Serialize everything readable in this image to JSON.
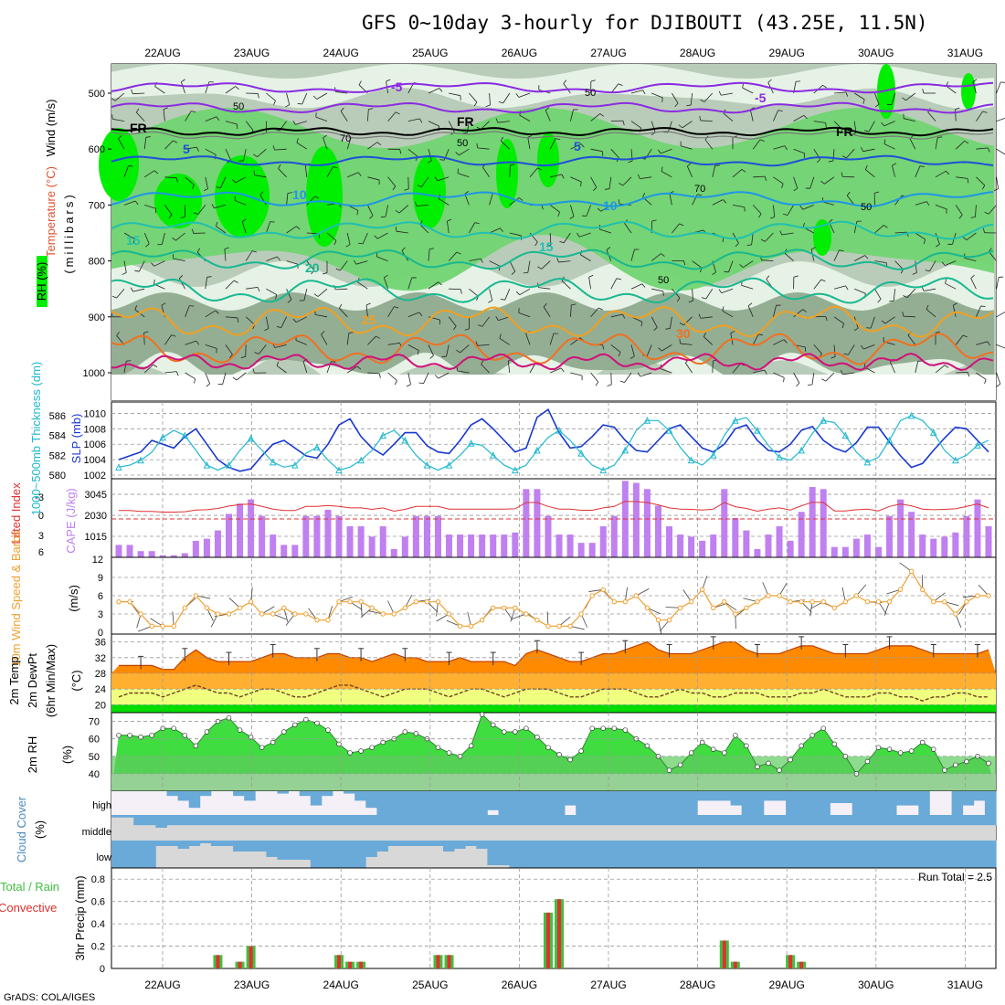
{
  "title": "GFS 0~10day 3-hourly for DJIBOUTI (43.25E, 11.5N)",
  "credit": "GrADS: COLA/IGES",
  "dates": [
    "22AUG",
    "23AUG",
    "24AUG",
    "25AUG",
    "26AUG",
    "27AUG",
    "28AUG",
    "29AUG",
    "30AUG",
    "31AUG"
  ],
  "colors": {
    "rh_light": "#e8f3e8",
    "rh_mid": "#b9ccb9",
    "rh_dark": "#8faa8f",
    "rh_green": "#71d471",
    "rh_bright": "#00ee00",
    "temp_neg": "#8a2be2",
    "temp_5": "#1e50d8",
    "temp_10": "#1e96e6",
    "temp_15": "#20c0b0",
    "temp_20": "#18b890",
    "temp_25": "#f0a020",
    "temp_30": "#f07020",
    "temp_35": "#d0107a",
    "slp": "#1838d0",
    "thickness": "#20b8d0",
    "lifted": "#e03030",
    "cape": "#c080f0",
    "wind10": "#f0a030",
    "barb": "#444444",
    "t_band_orange": "#ff8a00",
    "t_band_amber": "#ffb030",
    "t_band_yellow": "#f0ff80",
    "rh2m": "#40dd40",
    "cloud": "#6aaad8",
    "cloud_none": "#d8d8d8",
    "precip_total": "#40c040",
    "precip_conv": "#e03030"
  },
  "panel_upper": {
    "label_wind": "Wind (m/s)",
    "label_temp": "Temperature (°C)",
    "label_rh": "RH (%)",
    "axis_label": "(millibars)",
    "levels": [
      500,
      600,
      700,
      800,
      900,
      1000
    ],
    "contour_labels": [
      {
        "text": "-5",
        "color_key": "temp_neg"
      },
      {
        "text": "-5",
        "color_key": "temp_neg"
      },
      {
        "text": "FR",
        "color_key": ""
      },
      {
        "text": "FR",
        "color_key": ""
      },
      {
        "text": "FR",
        "color_key": ""
      },
      {
        "text": "5",
        "color_key": "temp_5"
      },
      {
        "text": "5",
        "color_key": "temp_5"
      },
      {
        "text": "10",
        "color_key": "temp_10"
      },
      {
        "text": "10",
        "color_key": "temp_10"
      },
      {
        "text": "15",
        "color_key": "temp_15"
      },
      {
        "text": "15",
        "color_key": "temp_15"
      },
      {
        "text": "20",
        "color_key": "temp_20"
      },
      {
        "text": "25",
        "color_key": "temp_25"
      },
      {
        "text": "30",
        "color_key": "temp_30"
      }
    ],
    "rh_labels": [
      "50",
      "50",
      "70",
      "50",
      "50",
      "70",
      "50"
    ]
  },
  "panel_slp": {
    "label_thickness": "1000~500mb Thickness (dm)",
    "label_slp": "SLP (mb)",
    "thickness_ticks": [
      586,
      584,
      582,
      580
    ],
    "slp_ticks": [
      1010,
      1008,
      1006,
      1004,
      1002
    ]
  },
  "panel_cape": {
    "label_li": "Lifted Index",
    "label_cape": "CAPE (J/kg)",
    "li_ticks": [
      "-3",
      "0",
      "3",
      "6"
    ],
    "cape_ticks": [
      3045,
      2030,
      1015
    ]
  },
  "panel_wind": {
    "label": "10m Wind Speed & Barbs",
    "unit": "(m/s)",
    "ticks": [
      12,
      9,
      6,
      3,
      0
    ]
  },
  "panel_temp": {
    "label": "2m Temp",
    "label2": "2m DewPt",
    "label3": "(6hr Min/Max)",
    "unit": "(°C)",
    "ticks": [
      36,
      32,
      28,
      24,
      20
    ]
  },
  "panel_rh": {
    "label": "2m RH",
    "unit": "(%)",
    "ticks": [
      70,
      60,
      50,
      40
    ]
  },
  "panel_cloud": {
    "label": "Cloud Cover",
    "unit": "(%)",
    "layers": [
      "high",
      "middle",
      "low"
    ]
  },
  "panel_precip": {
    "label_total": "Total / Rain",
    "label_conv": "Convective",
    "label_axis": "3hr Precip (mm)",
    "ticks": [
      "0.8",
      "0.6",
      "0.4",
      "0.2",
      "0"
    ],
    "run_total": "Run Total = 2.5"
  },
  "chart_data": {
    "type": "line",
    "title": "GFS 0~10day 3-hourly for DJIBOUTI (43.25E, 11.5N)",
    "time_step_hours": 3,
    "n_steps": 80,
    "x_labels": [
      "22AUG",
      "23AUG",
      "24AUG",
      "25AUG",
      "26AUG",
      "27AUG",
      "28AUG",
      "29AUG",
      "30AUG",
      "31AUG"
    ],
    "series": [
      {
        "name": "SLP (mb)",
        "ylim": [
          1002,
          1011
        ],
        "values": [
          1004,
          1004.5,
          1005,
          1006.5,
          1006,
          1005.5,
          1007,
          1008,
          1006,
          1004,
          1003,
          1002.5,
          1002.8,
          1004.5,
          1006,
          1006.5,
          1005.5,
          1004.5,
          1004.2,
          1006,
          1008.5,
          1009.3,
          1007,
          1005.5,
          1004.6,
          1006,
          1007.5,
          1007.5,
          1005.8,
          1005,
          1004.8,
          1006.5,
          1008.5,
          1009.3,
          1008,
          1006.5,
          1005,
          1005.5,
          1009.5,
          1010.5,
          1007.5,
          1005.5,
          1005.7,
          1007,
          1008.5,
          1008.2,
          1006.5,
          1005.2,
          1005,
          1006.5,
          1008,
          1008.5,
          1007,
          1005.5,
          1005,
          1006,
          1008,
          1008.5,
          1006.5,
          1005.2,
          1005,
          1006,
          1007.8,
          1008.3,
          1006.5,
          1005.5,
          1005,
          1006.2,
          1008.2,
          1008.2,
          1006.3,
          1004.5,
          1003,
          1003.5,
          1005.2,
          1006.8,
          1008.2,
          1008,
          1006.5,
          1005
        ]
      },
      {
        "name": "1000~500mb Thickness (dm)",
        "ylim": [
          580,
          587
        ],
        "values": [
          580.8,
          581,
          581.5,
          582.3,
          583.8,
          584.5,
          584,
          582.5,
          581,
          580.5,
          581,
          582.5,
          583.7,
          582.5,
          581.3,
          580.8,
          581,
          582.2,
          582.8,
          581.5,
          580.5,
          580.8,
          581.5,
          582.5,
          584,
          584.5,
          583.5,
          582,
          581,
          580.5,
          581,
          582,
          583.2,
          583,
          582,
          581,
          580.5,
          581,
          582.5,
          583.8,
          584.5,
          583.5,
          582.2,
          581,
          580.5,
          581,
          582.5,
          584.5,
          585.5,
          585.5,
          584.5,
          582.8,
          581.5,
          581,
          582,
          584,
          585.5,
          585.8,
          584.5,
          583,
          581.8,
          581.5,
          582.5,
          584.2,
          585.5,
          585.3,
          584,
          582.3,
          581.3,
          581.8,
          583.5,
          585.5,
          586,
          585.5,
          584.3,
          582.5,
          581.5,
          582,
          583,
          583.5
        ]
      },
      {
        "name": "CAPE (J/kg)",
        "ylim": [
          0,
          3800
        ],
        "values": [
          600,
          600,
          300,
          300,
          100,
          100,
          200,
          800,
          900,
          1300,
          2100,
          2600,
          2800,
          2000,
          1100,
          600,
          600,
          2000,
          2000,
          2300,
          2000,
          1500,
          1500,
          1000,
          1500,
          400,
          1000,
          2000,
          2000,
          2000,
          1100,
          1100,
          1100,
          1100,
          1100,
          1100,
          1200,
          3300,
          3300,
          2000,
          1100,
          1100,
          700,
          700,
          1500,
          2000,
          3700,
          3600,
          3300,
          2500,
          1500,
          1100,
          1000,
          800,
          1100,
          3300,
          1900,
          1300,
          400,
          1100,
          1500,
          800,
          2200,
          3400,
          3300,
          500,
          500,
          900,
          1100,
          500,
          2000,
          2800,
          2200,
          1100,
          900,
          1000,
          1200,
          2000,
          2800,
          1500
        ]
      },
      {
        "name": "10m Wind Speed (m/s)",
        "ylim": [
          0,
          12
        ],
        "values": [
          5,
          5,
          3,
          1,
          1,
          1,
          4,
          6,
          4,
          3,
          3,
          4,
          5,
          3,
          3,
          4,
          3,
          3,
          2,
          2,
          5,
          5,
          5,
          4,
          3,
          3,
          4,
          5,
          5,
          5,
          3,
          1,
          1,
          2,
          4,
          4,
          4,
          3,
          2,
          1,
          1,
          1,
          3,
          6,
          7,
          5,
          5,
          6,
          4,
          2,
          2,
          4,
          5,
          7,
          4,
          5,
          3,
          4,
          5,
          6,
          6,
          5,
          5,
          5,
          5,
          4,
          5,
          6,
          5,
          5,
          5,
          7,
          10,
          7,
          5,
          5,
          3,
          5,
          6,
          6
        ]
      },
      {
        "name": "2m Temp (°C)",
        "ylim": [
          18,
          38
        ],
        "values": [
          30,
          30,
          30,
          30,
          29,
          29,
          32,
          34,
          32,
          31,
          31,
          31,
          31,
          32,
          33,
          33,
          32,
          32,
          32,
          33,
          33,
          32,
          32,
          31,
          32,
          33,
          32,
          32,
          31,
          31,
          31,
          32,
          31,
          31,
          31,
          31,
          30,
          33,
          34,
          33,
          32,
          31,
          31,
          32,
          33,
          33,
          34,
          35,
          36,
          34,
          33,
          33,
          33,
          34,
          35,
          36,
          36,
          34,
          33,
          33,
          33,
          34,
          35,
          35,
          34,
          33,
          33,
          33,
          33,
          34,
          35,
          35,
          35,
          34,
          33,
          33,
          33,
          33,
          33,
          34
        ]
      },
      {
        "name": "2m DewPt (°C)",
        "ylim": [
          18,
          38
        ],
        "values": [
          22,
          23,
          23,
          23,
          22,
          23,
          24,
          25,
          24,
          23,
          23,
          22,
          23,
          24,
          24,
          23,
          22,
          22,
          23,
          24,
          25,
          25,
          24,
          23,
          22,
          23,
          24,
          24,
          24,
          23,
          22,
          23,
          24,
          24,
          23,
          22,
          23,
          24,
          24,
          24,
          23,
          22,
          22,
          23,
          24,
          24,
          24,
          23,
          22,
          22,
          23,
          24,
          23,
          23,
          22,
          22,
          23,
          23,
          23,
          22,
          22,
          22,
          23,
          23,
          24,
          23,
          22,
          22,
          22,
          23,
          23,
          22,
          22,
          21,
          22,
          22,
          23,
          23,
          22,
          22
        ]
      },
      {
        "name": "2m RH (%)",
        "ylim": [
          30,
          75
        ],
        "values": [
          62,
          62,
          61,
          62,
          66,
          66,
          62,
          56,
          64,
          70,
          72,
          65,
          61,
          55,
          58,
          64,
          68,
          71,
          69,
          65,
          57,
          52,
          53,
          55,
          58,
          60,
          64,
          63,
          60,
          55,
          52,
          50,
          56,
          74,
          68,
          64,
          64,
          66,
          61,
          55,
          51,
          48,
          53,
          66,
          66,
          66,
          65,
          60,
          56,
          50,
          42,
          45,
          52,
          58,
          54,
          52,
          62,
          56,
          44,
          46,
          42,
          48,
          56,
          62,
          66,
          57,
          50,
          40,
          47,
          55,
          54,
          52,
          53,
          58,
          54,
          42,
          45,
          47,
          50,
          46
        ]
      },
      {
        "name": "3hr Precip total (mm)",
        "ylim": [
          0,
          0.9
        ],
        "values": [
          0,
          0,
          0,
          0,
          0,
          0,
          0,
          0,
          0,
          0.12,
          0,
          0.06,
          0.2,
          0,
          0,
          0,
          0,
          0,
          0,
          0,
          0.12,
          0.06,
          0.06,
          0,
          0,
          0,
          0,
          0,
          0,
          0.12,
          0.12,
          0,
          0,
          0,
          0,
          0,
          0,
          0,
          0,
          0.5,
          0.62,
          0,
          0,
          0,
          0,
          0,
          0,
          0,
          0,
          0,
          0,
          0,
          0,
          0,
          0,
          0.25,
          0.06,
          0,
          0,
          0,
          0,
          0.12,
          0.06,
          0,
          0,
          0,
          0,
          0,
          0,
          0,
          0,
          0,
          0,
          0,
          0,
          0,
          0,
          0,
          0,
          0
        ]
      },
      {
        "name": "Cloud Cover high (%)",
        "ylim": [
          0,
          100
        ],
        "values": [
          0,
          0,
          0,
          0,
          0,
          20,
          40,
          70,
          20,
          0,
          0,
          20,
          40,
          0,
          0,
          10,
          0,
          20,
          60,
          20,
          0,
          10,
          40,
          70,
          100,
          100,
          100,
          100,
          100,
          100,
          100,
          100,
          100,
          100,
          80,
          100,
          100,
          100,
          100,
          100,
          100,
          60,
          100,
          100,
          100,
          100,
          100,
          100,
          100,
          100,
          100,
          100,
          100,
          40,
          40,
          40,
          60,
          100,
          100,
          40,
          40,
          100,
          100,
          100,
          100,
          50,
          50,
          100,
          100,
          100,
          100,
          60,
          60,
          100,
          0,
          0,
          100,
          60,
          40,
          100
        ]
      },
      {
        "name": "Cloud Cover middle (%)",
        "ylim": [
          0,
          100
        ],
        "values": [
          10,
          10,
          40,
          40,
          50,
          40,
          40,
          40,
          40,
          40,
          40,
          40,
          40,
          40,
          40,
          40,
          40,
          40,
          40,
          40,
          40,
          40,
          40,
          40,
          40,
          40,
          40,
          40,
          40,
          40,
          40,
          40,
          40,
          40,
          40,
          40,
          40,
          40,
          40,
          40,
          40,
          40,
          40,
          40,
          40,
          40,
          40,
          40,
          40,
          40,
          40,
          40,
          40,
          40,
          40,
          40,
          40,
          40,
          40,
          40,
          40,
          40,
          40,
          40,
          40,
          40,
          40,
          40,
          40,
          40,
          40,
          40,
          40,
          40,
          40,
          40,
          40,
          40,
          40,
          40
        ]
      },
      {
        "name": "Cloud Cover low (%)",
        "ylim": [
          0,
          100
        ],
        "values": [
          100,
          100,
          100,
          100,
          20,
          20,
          30,
          20,
          10,
          20,
          20,
          40,
          40,
          40,
          60,
          70,
          70,
          70,
          100,
          100,
          100,
          100,
          100,
          60,
          40,
          20,
          20,
          20,
          20,
          20,
          40,
          30,
          20,
          30,
          90,
          90,
          100,
          100,
          100,
          100,
          100,
          100,
          100,
          100,
          100,
          100,
          100,
          100,
          100,
          100,
          100,
          100,
          100,
          100,
          100,
          100,
          100,
          100,
          100,
          100,
          100,
          100,
          100,
          100,
          100,
          100,
          100,
          100,
          100,
          100,
          100,
          100,
          100,
          100,
          100,
          100,
          100,
          100,
          100,
          100
        ]
      }
    ]
  }
}
